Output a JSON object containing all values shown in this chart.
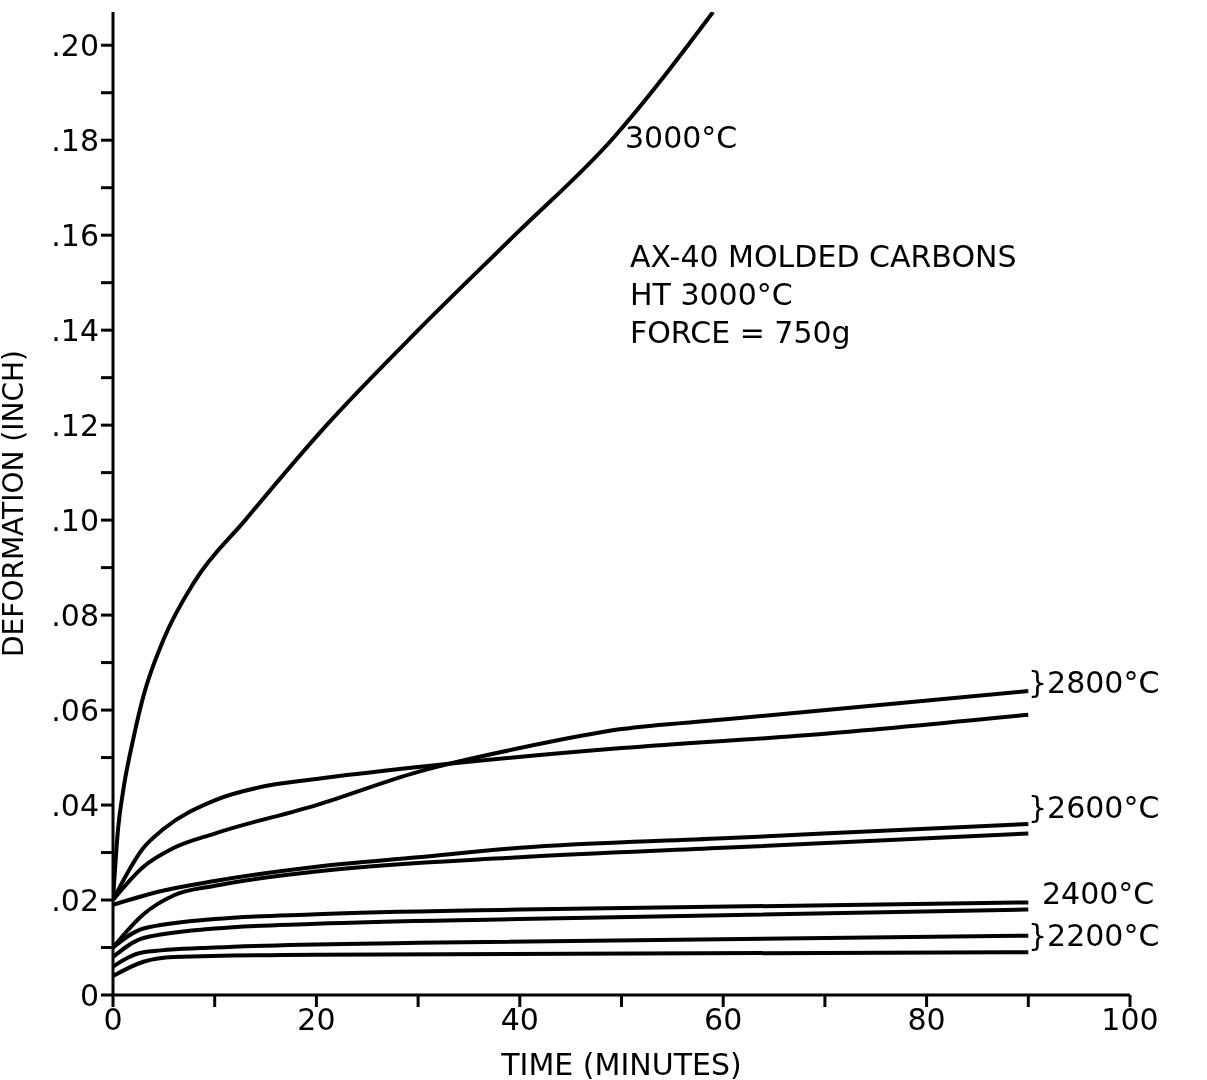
{
  "chart_data": {
    "type": "line",
    "xlabel": "TIME (MINUTES)",
    "ylabel": "DEFORMATION (INCH)",
    "xlim": [
      0,
      100
    ],
    "ylim": [
      0,
      0.207
    ],
    "xticks": [
      0,
      {
        "value": 10,
        "label": null
      },
      20,
      {
        "value": 30,
        "label": null
      },
      40,
      {
        "value": 50,
        "label": null
      },
      60,
      {
        "value": 70,
        "label": null
      },
      80,
      {
        "value": 90,
        "label": null
      },
      100
    ],
    "yticks": [
      0,
      {
        "value": 0.01,
        "label": null
      },
      {
        "value": 0.02,
        "label": ".02"
      },
      {
        "value": 0.03,
        "label": null
      },
      {
        "value": 0.04,
        "label": ".04"
      },
      {
        "value": 0.05,
        "label": null
      },
      {
        "value": 0.06,
        "label": ".06"
      },
      {
        "value": 0.07,
        "label": null
      },
      {
        "value": 0.08,
        "label": ".08"
      },
      {
        "value": 0.09,
        "label": null
      },
      {
        "value": 0.1,
        "label": ".10"
      },
      {
        "value": 0.11,
        "label": null
      },
      {
        "value": 0.12,
        "label": ".12"
      },
      {
        "value": 0.13,
        "label": null
      },
      {
        "value": 0.14,
        "label": ".14"
      },
      {
        "value": 0.15,
        "label": null
      },
      {
        "value": 0.16,
        "label": ".16"
      },
      {
        "value": 0.17,
        "label": null
      },
      {
        "value": 0.18,
        "label": ".18"
      },
      {
        "value": 0.19,
        "label": null
      },
      {
        "value": 0.2,
        "label": ".20"
      }
    ],
    "marker": "none",
    "line_style": "solid",
    "series": [
      {
        "color": "#000000",
        "x": [
          0,
          0.5,
          1,
          2,
          3,
          5,
          8,
          13,
          21,
          30,
          39.5,
          49,
          59
        ],
        "values": [
          0.02,
          0.035,
          0.043,
          0.054,
          0.063,
          0.075,
          0.087,
          0.1,
          0.12,
          0.14,
          0.16,
          0.18,
          0.207
        ]
      },
      {
        "color": "#000000",
        "x": [
          0,
          3,
          6,
          10,
          20,
          30,
          40,
          50,
          60,
          90
        ],
        "values": [
          0.02,
          0.027,
          0.031,
          0.034,
          0.04,
          0.047,
          0.052,
          0.056,
          0.058,
          0.064
        ]
      },
      {
        "color": "#000000",
        "x": [
          0,
          3,
          5,
          10,
          15,
          20,
          30,
          50,
          70,
          90
        ],
        "values": [
          0.02,
          0.031,
          0.035,
          0.041,
          0.044,
          0.0455,
          0.048,
          0.052,
          0.055,
          0.059
        ]
      },
      {
        "color": "#000000",
        "x": [
          0,
          5,
          10,
          20,
          30,
          40,
          60,
          90
        ],
        "values": [
          0.019,
          0.022,
          0.024,
          0.027,
          0.029,
          0.031,
          0.033,
          0.036
        ]
      },
      {
        "color": "#000000",
        "x": [
          0,
          3,
          6,
          10,
          20,
          40,
          60,
          90
        ],
        "values": [
          0.01,
          0.017,
          0.021,
          0.023,
          0.026,
          0.029,
          0.031,
          0.034
        ]
      },
      {
        "color": "#000000",
        "x": [
          0,
          3,
          10,
          20,
          40,
          90
        ],
        "values": [
          0.01,
          0.014,
          0.016,
          0.017,
          0.018,
          0.0195
        ]
      },
      {
        "color": "#000000",
        "x": [
          0,
          3,
          10,
          20,
          40,
          90
        ],
        "values": [
          0.008,
          0.012,
          0.014,
          0.015,
          0.016,
          0.018
        ]
      },
      {
        "color": "#000000",
        "x": [
          0,
          3,
          10,
          30,
          90
        ],
        "values": [
          0.006,
          0.009,
          0.01,
          0.011,
          0.0125
        ]
      },
      {
        "color": "#000000",
        "x": [
          0,
          3,
          6,
          20,
          90
        ],
        "values": [
          0.004,
          0.007,
          0.008,
          0.0085,
          0.009
        ]
      }
    ],
    "annotations": [
      "3000°C",
      "}2800°C",
      "}2600°C",
      "2400°C",
      "}2200°C",
      "AX-40 MOLDED CARBONS",
      "HT 3000°C",
      "FORCE = 750g"
    ]
  }
}
